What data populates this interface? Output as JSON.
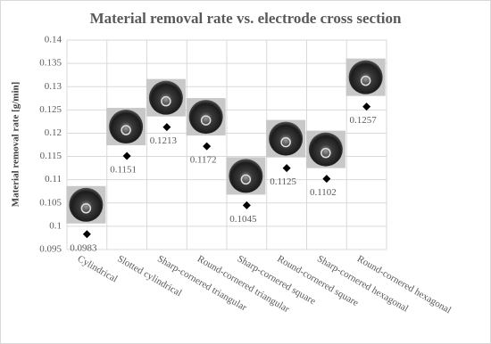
{
  "chart_data": {
    "type": "scatter",
    "title": "Material removal rate vs. electrode cross section",
    "y_label": "Material removal rate [g/min]",
    "categories": [
      "Cylindrical",
      "Slotted cylindrical",
      "Sharp-cornered triangular",
      "Round-cornered triangular",
      "Sharp-cornered square",
      "Round-cornered square",
      "Sharp-cornered hexagonal",
      "Round-cornered hexagonal"
    ],
    "values": [
      0.0983,
      0.1151,
      0.1213,
      0.1172,
      0.1045,
      0.1125,
      0.1102,
      0.1257
    ],
    "color": "#000000",
    "ylim": [
      0.095,
      0.14
    ],
    "yticks": [
      0.095,
      0.1,
      0.105,
      0.11,
      0.115,
      0.12,
      0.125,
      0.13,
      0.135,
      0.14
    ],
    "grid": true
  }
}
